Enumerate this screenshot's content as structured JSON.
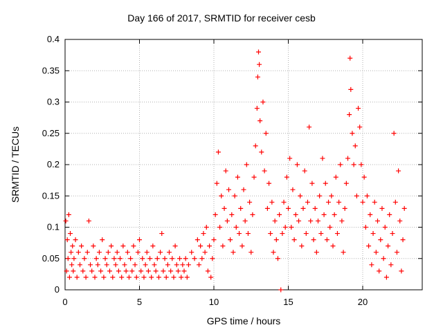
{
  "chart_data": {
    "type": "scatter",
    "title": "Day 166 of 2017, SRMTID for receiver cesb",
    "xlabel": "GPS time / hours",
    "ylabel": "SRMTID / TECUs",
    "xlim": [
      0,
      24
    ],
    "ylim": [
      0,
      0.4
    ],
    "xticks": [
      0,
      5,
      10,
      15,
      20
    ],
    "yticks": [
      0,
      0.05,
      0.1,
      0.15,
      0.2,
      0.25,
      0.3,
      0.35,
      0.4
    ],
    "xtick_labels": [
      "0",
      "5",
      "10",
      "15",
      "20"
    ],
    "ytick_labels": [
      "0",
      "0.05",
      "0.1",
      "0.15",
      "0.2",
      "0.25",
      "0.3",
      "0.35",
      "0.4"
    ],
    "grid": true,
    "marker": "+",
    "color": "#ff0000",
    "series": [
      {
        "name": "SRMTID",
        "points": [
          [
            0.05,
            0.11
          ],
          [
            0.1,
            0.03
          ],
          [
            0.15,
            0.08
          ],
          [
            0.2,
            0.05
          ],
          [
            0.25,
            0.12
          ],
          [
            0.3,
            0.02
          ],
          [
            0.35,
            0.09
          ],
          [
            0.4,
            0.06
          ],
          [
            0.45,
            0.04
          ],
          [
            0.5,
            0.07
          ],
          [
            0.55,
            0.03
          ],
          [
            0.6,
            0.05
          ],
          [
            0.7,
            0.08
          ],
          [
            0.8,
            0.02
          ],
          [
            0.9,
            0.06
          ],
          [
            1.0,
            0.04
          ],
          [
            1.1,
            0.07
          ],
          [
            1.2,
            0.03
          ],
          [
            1.3,
            0.05
          ],
          [
            1.4,
            0.02
          ],
          [
            1.5,
            0.06
          ],
          [
            1.6,
            0.11
          ],
          [
            1.7,
            0.04
          ],
          [
            1.8,
            0.03
          ],
          [
            1.9,
            0.07
          ],
          [
            2.0,
            0.02
          ],
          [
            2.1,
            0.05
          ],
          [
            2.2,
            0.04
          ],
          [
            2.3,
            0.06
          ],
          [
            2.4,
            0.03
          ],
          [
            2.5,
            0.08
          ],
          [
            2.6,
            0.02
          ],
          [
            2.7,
            0.05
          ],
          [
            2.8,
            0.04
          ],
          [
            2.9,
            0.06
          ],
          [
            3.0,
            0.03
          ],
          [
            3.1,
            0.07
          ],
          [
            3.2,
            0.02
          ],
          [
            3.3,
            0.05
          ],
          [
            3.4,
            0.04
          ],
          [
            3.5,
            0.06
          ],
          [
            3.6,
            0.03
          ],
          [
            3.7,
            0.05
          ],
          [
            3.8,
            0.02
          ],
          [
            3.9,
            0.07
          ],
          [
            4.0,
            0.04
          ],
          [
            4.1,
            0.03
          ],
          [
            4.2,
            0.06
          ],
          [
            4.3,
            0.02
          ],
          [
            4.4,
            0.05
          ],
          [
            4.5,
            0.03
          ],
          [
            4.6,
            0.07
          ],
          [
            4.7,
            0.04
          ],
          [
            4.8,
            0.02
          ],
          [
            4.9,
            0.06
          ],
          [
            5.0,
            0.08
          ],
          [
            5.1,
            0.03
          ],
          [
            5.2,
            0.05
          ],
          [
            5.3,
            0.02
          ],
          [
            5.4,
            0.04
          ],
          [
            5.5,
            0.06
          ],
          [
            5.6,
            0.03
          ],
          [
            5.7,
            0.05
          ],
          [
            5.8,
            0.02
          ],
          [
            5.9,
            0.07
          ],
          [
            6.0,
            0.04
          ],
          [
            6.1,
            0.03
          ],
          [
            6.2,
            0.05
          ],
          [
            6.3,
            0.02
          ],
          [
            6.4,
            0.06
          ],
          [
            6.5,
            0.09
          ],
          [
            6.6,
            0.03
          ],
          [
            6.7,
            0.05
          ],
          [
            6.8,
            0.02
          ],
          [
            6.9,
            0.04
          ],
          [
            7.0,
            0.06
          ],
          [
            7.1,
            0.03
          ],
          [
            7.2,
            0.05
          ],
          [
            7.3,
            0.02
          ],
          [
            7.4,
            0.07
          ],
          [
            7.5,
            0.04
          ],
          [
            7.6,
            0.03
          ],
          [
            7.7,
            0.05
          ],
          [
            7.8,
            0.02
          ],
          [
            7.9,
            0.04
          ],
          [
            8.0,
            0.03
          ],
          [
            8.1,
            0.05
          ],
          [
            8.2,
            0.02
          ],
          [
            8.3,
            0.04
          ],
          [
            8.5,
            0.06
          ],
          [
            8.7,
            0.05
          ],
          [
            8.9,
            0.08
          ],
          [
            9.0,
            0.04
          ],
          [
            9.1,
            0.07
          ],
          [
            9.2,
            0.05
          ],
          [
            9.3,
            0.09
          ],
          [
            9.4,
            0.06
          ],
          [
            9.5,
            0.1
          ],
          [
            9.6,
            0.03
          ],
          [
            9.7,
            0.07
          ],
          [
            9.8,
            0.02
          ],
          [
            9.9,
            0.05
          ],
          [
            10.0,
            0.08
          ],
          [
            10.1,
            0.12
          ],
          [
            10.2,
            0.17
          ],
          [
            10.3,
            0.22
          ],
          [
            10.4,
            0.1
          ],
          [
            10.5,
            0.15
          ],
          [
            10.6,
            0.07
          ],
          [
            10.7,
            0.13
          ],
          [
            10.8,
            0.19
          ],
          [
            10.9,
            0.11
          ],
          [
            11.0,
            0.16
          ],
          [
            11.1,
            0.08
          ],
          [
            11.2,
            0.12
          ],
          [
            11.3,
            0.06
          ],
          [
            11.4,
            0.15
          ],
          [
            11.5,
            0.1
          ],
          [
            11.6,
            0.18
          ],
          [
            11.7,
            0.09
          ],
          [
            11.8,
            0.13
          ],
          [
            11.9,
            0.07
          ],
          [
            12.0,
            0.16
          ],
          [
            12.1,
            0.11
          ],
          [
            12.2,
            0.2
          ],
          [
            12.3,
            0.09
          ],
          [
            12.4,
            0.14
          ],
          [
            12.5,
            0.06
          ],
          [
            12.6,
            0.12
          ],
          [
            12.7,
            0.18
          ],
          [
            12.8,
            0.23
          ],
          [
            12.9,
            0.29
          ],
          [
            12.95,
            0.34
          ],
          [
            13.0,
            0.38
          ],
          [
            13.05,
            0.36
          ],
          [
            13.1,
            0.27
          ],
          [
            13.2,
            0.22
          ],
          [
            13.3,
            0.3
          ],
          [
            13.4,
            0.19
          ],
          [
            13.5,
            0.25
          ],
          [
            13.6,
            0.13
          ],
          [
            13.7,
            0.17
          ],
          [
            13.8,
            0.09
          ],
          [
            13.9,
            0.14
          ],
          [
            14.0,
            0.06
          ],
          [
            14.1,
            0.11
          ],
          [
            14.2,
            0.08
          ],
          [
            14.3,
            0.05
          ],
          [
            14.4,
            0.12
          ],
          [
            14.5,
            0.0
          ],
          [
            14.6,
            0.09
          ],
          [
            14.7,
            0.14
          ],
          [
            14.8,
            0.1
          ],
          [
            14.9,
            0.18
          ],
          [
            15.0,
            0.13
          ],
          [
            15.1,
            0.21
          ],
          [
            15.2,
            0.1
          ],
          [
            15.3,
            0.16
          ],
          [
            15.4,
            0.08
          ],
          [
            15.5,
            0.12
          ],
          [
            15.6,
            0.2
          ],
          [
            15.7,
            0.11
          ],
          [
            15.8,
            0.15
          ],
          [
            15.9,
            0.07
          ],
          [
            16.0,
            0.13
          ],
          [
            16.1,
            0.19
          ],
          [
            16.2,
            0.09
          ],
          [
            16.3,
            0.14
          ],
          [
            16.4,
            0.26
          ],
          [
            16.5,
            0.11
          ],
          [
            16.6,
            0.17
          ],
          [
            16.7,
            0.08
          ],
          [
            16.8,
            0.13
          ],
          [
            16.9,
            0.06
          ],
          [
            17.0,
            0.11
          ],
          [
            17.1,
            0.15
          ],
          [
            17.2,
            0.09
          ],
          [
            17.3,
            0.21
          ],
          [
            17.4,
            0.12
          ],
          [
            17.5,
            0.17
          ],
          [
            17.6,
            0.08
          ],
          [
            17.7,
            0.14
          ],
          [
            17.8,
            0.1
          ],
          [
            17.9,
            0.15
          ],
          [
            18.0,
            0.07
          ],
          [
            18.1,
            0.12
          ],
          [
            18.2,
            0.18
          ],
          [
            18.3,
            0.09
          ],
          [
            18.4,
            0.14
          ],
          [
            18.5,
            0.2
          ],
          [
            18.6,
            0.11
          ],
          [
            18.7,
            0.06
          ],
          [
            18.8,
            0.13
          ],
          [
            18.9,
            0.17
          ],
          [
            19.0,
            0.21
          ],
          [
            19.1,
            0.28
          ],
          [
            19.15,
            0.37
          ],
          [
            19.2,
            0.32
          ],
          [
            19.3,
            0.25
          ],
          [
            19.4,
            0.2
          ],
          [
            19.5,
            0.23
          ],
          [
            19.6,
            0.15
          ],
          [
            19.7,
            0.29
          ],
          [
            19.8,
            0.26
          ],
          [
            19.9,
            0.2
          ],
          [
            20.0,
            0.14
          ],
          [
            20.1,
            0.18
          ],
          [
            20.2,
            0.1
          ],
          [
            20.3,
            0.15
          ],
          [
            20.4,
            0.07
          ],
          [
            20.5,
            0.12
          ],
          [
            20.6,
            0.04
          ],
          [
            20.7,
            0.09
          ],
          [
            20.8,
            0.14
          ],
          [
            20.9,
            0.06
          ],
          [
            21.0,
            0.11
          ],
          [
            21.1,
            0.03
          ],
          [
            21.2,
            0.08
          ],
          [
            21.3,
            0.13
          ],
          [
            21.4,
            0.05
          ],
          [
            21.5,
            0.1
          ],
          [
            21.6,
            0.02
          ],
          [
            21.7,
            0.07
          ],
          [
            21.8,
            0.12
          ],
          [
            21.9,
            0.04
          ],
          [
            22.0,
            0.09
          ],
          [
            22.1,
            0.25
          ],
          [
            22.2,
            0.14
          ],
          [
            22.3,
            0.06
          ],
          [
            22.4,
            0.19
          ],
          [
            22.5,
            0.11
          ],
          [
            22.6,
            0.03
          ],
          [
            22.7,
            0.08
          ],
          [
            22.8,
            0.13
          ]
        ]
      }
    ]
  }
}
